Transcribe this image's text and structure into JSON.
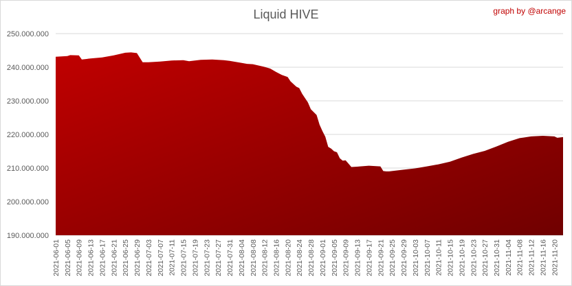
{
  "credit": "graph by @arcange",
  "chart_data": {
    "type": "area",
    "title": "Liquid HIVE",
    "xlabel": "",
    "ylabel": "",
    "ylim": [
      190000000,
      250000000
    ],
    "grid": "horizontal",
    "y_ticks": [
      "190.000.000",
      "200.000.000",
      "210.000.000",
      "220.000.000",
      "230.000.000",
      "240.000.000",
      "250.000.000"
    ],
    "x_ticks": [
      "2021-06-01",
      "2021-06-05",
      "2021-06-09",
      "2021-06-13",
      "2021-06-17",
      "2021-06-21",
      "2021-06-25",
      "2021-06-29",
      "2021-07-03",
      "2021-07-07",
      "2021-07-11",
      "2021-07-15",
      "2021-07-19",
      "2021-07-23",
      "2021-07-27",
      "2021-07-31",
      "2021-08-04",
      "2021-08-08",
      "2021-08-12",
      "2021-08-16",
      "2021-08-20",
      "2021-08-24",
      "2021-08-28",
      "2021-09-01",
      "2021-09-05",
      "2021-09-09",
      "2021-09-13",
      "2021-09-17",
      "2021-09-21",
      "2021-09-25",
      "2021-09-29",
      "2021-10-03",
      "2021-10-07",
      "2021-10-11",
      "2021-10-15",
      "2021-10-19",
      "2021-10-23",
      "2021-10-27",
      "2021-10-31",
      "2021-11-04",
      "2021-11-08",
      "2021-11-12",
      "2021-11-16",
      "2021-11-20"
    ],
    "fill_colors": [
      "#c00000",
      "#700000"
    ],
    "series": [
      {
        "x": [
          "2021-06-01",
          "2021-06-05",
          "2021-06-06",
          "2021-06-09",
          "2021-06-10",
          "2021-06-13",
          "2021-06-17",
          "2021-06-21",
          "2021-06-25",
          "2021-06-27",
          "2021-06-29",
          "2021-07-01",
          "2021-07-03",
          "2021-07-07",
          "2021-07-11",
          "2021-07-15",
          "2021-07-17",
          "2021-07-21",
          "2021-07-25",
          "2021-07-29",
          "2021-07-31",
          "2021-08-04",
          "2021-08-06",
          "2021-08-08",
          "2021-08-12",
          "2021-08-14",
          "2021-08-16",
          "2021-08-18",
          "2021-08-20",
          "2021-08-21",
          "2021-08-23",
          "2021-08-24",
          "2021-08-25",
          "2021-08-27",
          "2021-08-28",
          "2021-08-30",
          "2021-08-31",
          "2021-09-01",
          "2021-09-02",
          "2021-09-03",
          "2021-09-04",
          "2021-09-05",
          "2021-09-06",
          "2021-09-07",
          "2021-09-08",
          "2021-09-09",
          "2021-09-11",
          "2021-09-13",
          "2021-09-14",
          "2021-09-17",
          "2021-09-21",
          "2021-09-22",
          "2021-09-23",
          "2021-09-24",
          "2021-09-25",
          "2021-09-29",
          "2021-10-03",
          "2021-10-07",
          "2021-10-11",
          "2021-10-15",
          "2021-10-19",
          "2021-10-23",
          "2021-10-27",
          "2021-10-31",
          "2021-11-04",
          "2021-11-08",
          "2021-11-12",
          "2021-11-16",
          "2021-11-20",
          "2021-11-21",
          "2021-11-23"
        ],
        "values": [
          243100000,
          243300000,
          243600000,
          243500000,
          242300000,
          242600000,
          242900000,
          243500000,
          244300000,
          244400000,
          244200000,
          241500000,
          241500000,
          241700000,
          242000000,
          242100000,
          241800000,
          242200000,
          242300000,
          242100000,
          241900000,
          241300000,
          241000000,
          240900000,
          240100000,
          239600000,
          238600000,
          237700000,
          237100000,
          235800000,
          234200000,
          233800000,
          232100000,
          229500000,
          227500000,
          225800000,
          222900000,
          221000000,
          219300000,
          216300000,
          215800000,
          215000000,
          214700000,
          212900000,
          212200000,
          212300000,
          210300000,
          210400000,
          210500000,
          210700000,
          210500000,
          209100000,
          209000000,
          209000000,
          209100000,
          209500000,
          209900000,
          210500000,
          211100000,
          211900000,
          213100000,
          214200000,
          215100000,
          216400000,
          217800000,
          218900000,
          219400000,
          219600000,
          219400000,
          219000000,
          219200000
        ]
      }
    ]
  }
}
